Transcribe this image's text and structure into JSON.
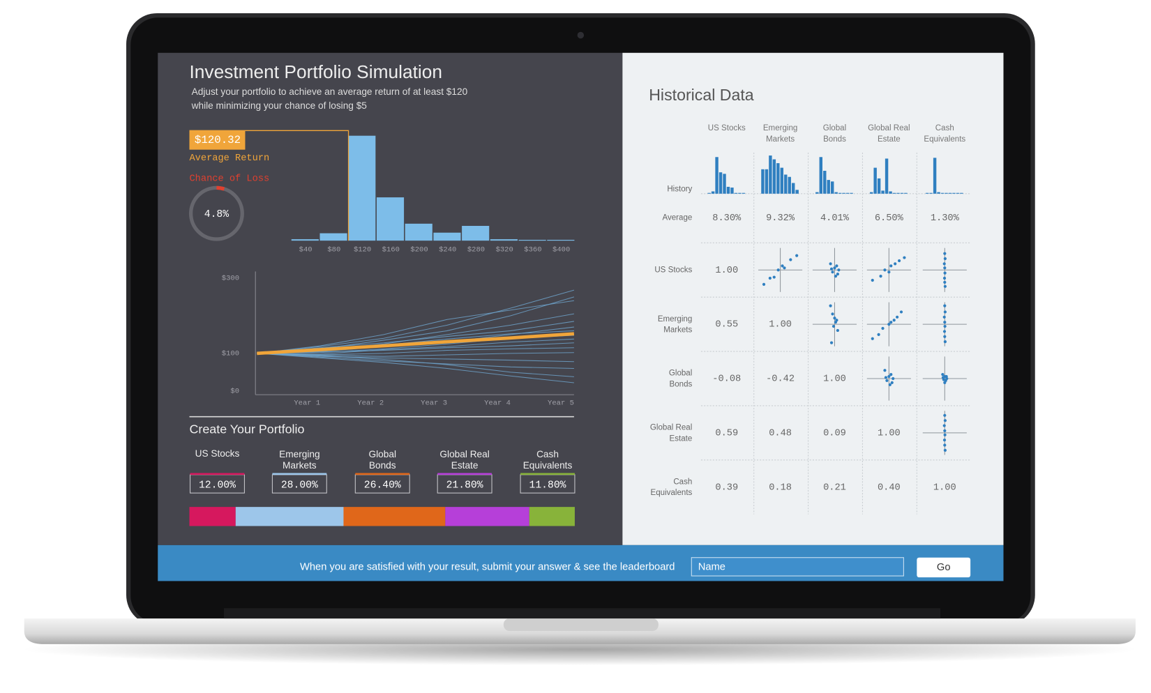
{
  "screen": {
    "title": "Investment Portfolio Simulation",
    "subtitle": [
      "Adjust your portfolio to achieve an average return of at least $120",
      "while minimizing your chance of losing $5"
    ],
    "average_return": {
      "value": 120.32,
      "label": "$120.32"
    },
    "average_return_label": "Average Return",
    "chance_of_loss_label": "Chance of Loss",
    "chance_of_loss": {
      "value": 4.8,
      "label": "4.8%"
    }
  },
  "chart_data": [
    {
      "type": "bar",
      "categories": [
        "$40",
        "$80",
        "$120",
        "$160",
        "$200",
        "$240",
        "$280",
        "$320",
        "$360",
        "$400"
      ],
      "values": [
        0.7,
        3.7,
        52.6,
        21.7,
        8.5,
        4.0,
        7.4,
        0.7,
        0.4,
        0.4
      ],
      "color": "#7dbde9"
    },
    {
      "type": "line",
      "x": [
        0,
        1,
        2,
        3,
        4,
        5
      ],
      "xlim": [
        0,
        5
      ],
      "xticks": [
        {
          "value": 1,
          "label": "Year 1"
        },
        {
          "value": 2,
          "label": "Year 2"
        },
        {
          "value": 3,
          "label": "Year 3"
        },
        {
          "value": 4,
          "label": "Year 4"
        },
        {
          "value": 5,
          "label": "Year 5"
        }
      ],
      "ylim": [
        0,
        300
      ],
      "yticks": [
        {
          "value": 300,
          "label": "$300"
        },
        {
          "value": 100,
          "label": "$100"
        },
        {
          "value": 0,
          "label": "$0"
        }
      ],
      "series": [
        {
          "color": "#6fa6cf",
          "values": [
            100,
            118,
            140,
            175,
            220,
            268
          ]
        },
        {
          "color": "#6fa6cf",
          "values": [
            100,
            112,
            135,
            160,
            200,
            250
          ]
        },
        {
          "color": "#6fa6cf",
          "values": [
            100,
            120,
            150,
            190,
            215,
            240
          ]
        },
        {
          "color": "#6fa6cf",
          "values": [
            100,
            108,
            125,
            150,
            175,
            205
          ]
        },
        {
          "color": "#6fa6cf",
          "values": [
            100,
            115,
            128,
            145,
            160,
            185
          ]
        },
        {
          "color": "#6fa6cf",
          "values": [
            100,
            105,
            118,
            130,
            150,
            170
          ]
        },
        {
          "color": "#6fa6cf",
          "values": [
            100,
            110,
            122,
            138,
            152,
            160
          ]
        },
        {
          "color": "#6fa6cf",
          "values": [
            100,
            102,
            112,
            125,
            140,
            148
          ]
        },
        {
          "color": "#6fa6cf",
          "values": [
            100,
            98,
            110,
            118,
            130,
            138
          ]
        },
        {
          "color": "#6fa6cf",
          "values": [
            100,
            104,
            108,
            115,
            120,
            128
          ]
        },
        {
          "color": "#6fa6cf",
          "values": [
            100,
            96,
            100,
            108,
            112,
            115
          ]
        },
        {
          "color": "#6fa6cf",
          "values": [
            100,
            95,
            92,
            96,
            100,
            102
          ]
        },
        {
          "color": "#6fa6cf",
          "values": [
            100,
            92,
            88,
            85,
            82,
            78
          ]
        },
        {
          "color": "#6fa6cf",
          "values": [
            100,
            90,
            80,
            72,
            64,
            60
          ]
        },
        {
          "color": "#6fa6cf",
          "values": [
            100,
            94,
            84,
            70,
            50,
            38
          ]
        },
        {
          "color": "#6fa6cf",
          "values": [
            100,
            88,
            76,
            60,
            40,
            22
          ]
        },
        {
          "color": "#f0a53a",
          "values": [
            100,
            110,
            120,
            131,
            141,
            152
          ]
        }
      ]
    }
  ],
  "assets": [
    [
      "US Stocks"
    ],
    [
      "Emerging",
      "Markets"
    ],
    [
      "Global",
      "Bonds"
    ],
    [
      "Global Real",
      "Estate"
    ],
    [
      "Cash",
      "Equivalents"
    ]
  ],
  "portfolio": {
    "title": "Create Your Portfolio",
    "allocations": [
      {
        "value": 12,
        "label": "12.00%",
        "color": "#d6185e"
      },
      {
        "value": 28,
        "label": "28.00%",
        "color": "#9dc6ea"
      },
      {
        "value": 26.4,
        "label": "26.40%",
        "color": "#e0671a"
      },
      {
        "value": 21.8,
        "label": "21.80%",
        "color": "#b63fd9"
      },
      {
        "value": 11.8,
        "label": "11.80%",
        "color": "#88b33a"
      }
    ]
  },
  "historical": {
    "title": "Historical Data",
    "history_label": "History",
    "average_label": "Average",
    "color": "#2f7fc0",
    "history": [
      [
        1,
        3,
        48,
        28,
        26,
        9,
        8,
        1,
        1,
        1
      ],
      [
        32,
        32,
        50,
        45,
        40,
        34,
        25,
        22,
        14,
        5
      ],
      [
        2,
        48,
        30,
        18,
        16,
        2,
        1,
        1,
        1,
        1
      ],
      [
        2,
        34,
        20,
        4,
        46,
        3,
        1,
        1,
        1,
        1
      ],
      [
        1,
        1,
        47,
        2,
        1,
        1,
        1,
        1,
        1,
        1
      ]
    ],
    "averages": [
      "8.30%",
      "9.32%",
      "4.01%",
      "6.50%",
      "1.30%"
    ],
    "matrix": [
      [
        "1.00",
        {
          "x": [
            -0.8,
            -0.5,
            -0.3,
            -0.1,
            0.1,
            0.2,
            0.5,
            0.8
          ],
          "y": [
            -0.7,
            -0.4,
            -0.35,
            0,
            0.2,
            0.1,
            0.5,
            0.7
          ]
        },
        {
          "x": [
            -0.2,
            -0.1,
            0,
            0.1,
            0.15,
            -0.15,
            0.05,
            0.2
          ],
          "y": [
            0.3,
            -0.1,
            0.1,
            0.2,
            -0.2,
            0.05,
            -0.3,
            0
          ]
        },
        {
          "x": [
            -0.8,
            -0.4,
            -0.2,
            0,
            0.1,
            0.3,
            0.5,
            0.75
          ],
          "y": [
            -0.5,
            -0.3,
            0,
            -0.1,
            0.2,
            0.3,
            0.45,
            0.6
          ]
        },
        {
          "x": [
            0,
            0.02,
            -0.02,
            0,
            0.01,
            -0.01,
            0,
            0.02
          ],
          "y": [
            0.8,
            0.55,
            0.3,
            0.1,
            -0.15,
            -0.4,
            -0.6,
            -0.8
          ]
        }
      ],
      [
        "0.55",
        "1.00",
        {
          "x": [
            -0.2,
            -0.1,
            0,
            0.05,
            0.1,
            -0.05,
            0.15,
            -0.15
          ],
          "y": [
            0.9,
            0.5,
            0.3,
            0.1,
            0.2,
            -0.1,
            -0.3,
            -0.9
          ]
        },
        {
          "x": [
            -0.8,
            -0.5,
            -0.3,
            0,
            0.1,
            0.25,
            0.4,
            0.6
          ],
          "y": [
            -0.7,
            -0.5,
            -0.2,
            0,
            0.1,
            0.2,
            0.35,
            0.6
          ]
        },
        {
          "x": [
            0,
            0.02,
            -0.02,
            0,
            0.01,
            -0.01,
            0,
            0.02
          ],
          "y": [
            0.9,
            0.6,
            0.35,
            0.1,
            -0.1,
            -0.35,
            -0.6,
            -0.85
          ]
        }
      ],
      [
        "-0.08",
        "-0.42",
        "1.00",
        {
          "x": [
            -0.2,
            -0.1,
            0,
            0.1,
            0.15,
            -0.15,
            0.05,
            0.2
          ],
          "y": [
            0.4,
            -0.1,
            0.1,
            0.2,
            -0.2,
            0.05,
            -0.3,
            0
          ]
        },
        {
          "x": [
            -0.1,
            0,
            0.1,
            -0.05,
            0.05,
            0,
            -0.08,
            0.08
          ],
          "y": [
            0.2,
            0.1,
            0,
            -0.05,
            -0.1,
            -0.2,
            0.05,
            0.1
          ]
        }
      ],
      [
        "0.59",
        "0.48",
        "0.09",
        "1.00",
        {
          "x": [
            0,
            0.02,
            -0.02,
            0,
            0.01,
            -0.01,
            0,
            0.02
          ],
          "y": [
            0.85,
            0.6,
            0.35,
            0.1,
            -0.1,
            -0.35,
            -0.6,
            -0.85
          ]
        }
      ],
      [
        "0.39",
        "0.18",
        "0.21",
        "0.40",
        "1.00"
      ]
    ]
  },
  "footer": {
    "message": "When you are satisfied with your result, submit your answer & see the leaderboard",
    "input_placeholder": "Name",
    "button": "Go"
  }
}
